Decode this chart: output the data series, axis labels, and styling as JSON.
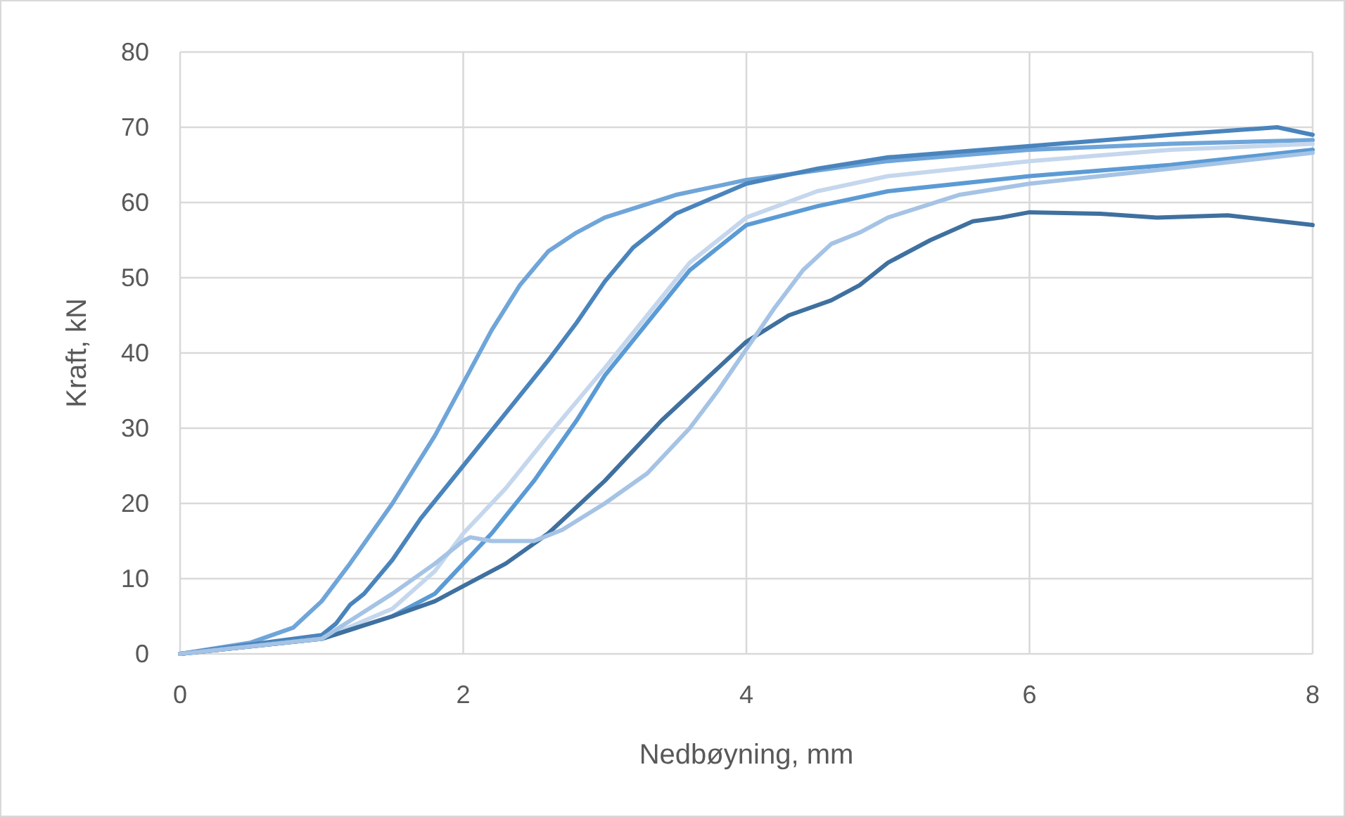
{
  "chart_data": {
    "type": "line",
    "xlabel": "Nedbøyning, mm",
    "ylabel": "Kraft, kN",
    "xlim": [
      0,
      8
    ],
    "xticks": [
      0,
      2,
      4,
      6,
      8
    ],
    "ylim": [
      0,
      80
    ],
    "yticks": [
      0,
      10,
      20,
      30,
      40,
      50,
      60,
      70,
      80
    ],
    "grid": true,
    "line_style": "solid",
    "series": [
      {
        "color": "#6fa5d9",
        "x": [
          0,
          0.5,
          0.8,
          1,
          1.2,
          1.5,
          1.8,
          2,
          2.2,
          2.4,
          2.6,
          2.8,
          3,
          3.5,
          4,
          5,
          6,
          7,
          8
        ],
        "values": [
          0,
          1.5,
          3.5,
          7,
          12,
          20,
          29,
          36,
          43,
          49,
          53.5,
          56,
          58,
          61,
          63,
          65.5,
          67,
          67.8,
          68.3
        ]
      },
      {
        "color": "#4a84bd",
        "x": [
          0,
          1,
          1.1,
          1.2,
          1.3,
          1.5,
          1.7,
          2,
          2.3,
          2.6,
          2.8,
          3,
          3.2,
          3.5,
          4,
          4.5,
          5,
          6,
          7,
          7.75,
          8
        ],
        "values": [
          0,
          2.5,
          4,
          6.5,
          8,
          12.5,
          18,
          25,
          32,
          39,
          44,
          49.5,
          54,
          58.5,
          62.5,
          64.5,
          66,
          67.5,
          69,
          70,
          69
        ]
      },
      {
        "color": "#c5d7ed",
        "x": [
          0,
          1,
          1.5,
          1.8,
          2,
          2.3,
          2.6,
          3,
          3.3,
          3.6,
          4,
          4.5,
          5,
          6,
          7,
          8
        ],
        "values": [
          0,
          2,
          6,
          11,
          16,
          22,
          29,
          38,
          45,
          52,
          58,
          61.5,
          63.5,
          65.5,
          67,
          67.8
        ]
      },
      {
        "color": "#5b9bd5",
        "x": [
          0,
          1,
          1.5,
          1.8,
          2,
          2.2,
          2.5,
          2.8,
          3,
          3.3,
          3.6,
          4,
          4.5,
          5,
          6,
          7,
          8
        ],
        "values": [
          0,
          2,
          5,
          8,
          12,
          16,
          23,
          31,
          37,
          44,
          51,
          57,
          59.5,
          61.5,
          63.5,
          65,
          67
        ]
      },
      {
        "color": "#3f709f",
        "x": [
          0,
          1,
          1.5,
          1.8,
          2,
          2.3,
          2.6,
          3,
          3.4,
          3.8,
          4,
          4.3,
          4.6,
          4.8,
          5,
          5.3,
          5.6,
          5.8,
          6,
          6.5,
          6.9,
          7.4,
          8
        ],
        "values": [
          0,
          2,
          5,
          7,
          9,
          12,
          16,
          23,
          31,
          38,
          41.5,
          45,
          47,
          49,
          52,
          55,
          57.5,
          58,
          58.7,
          58.5,
          58,
          58.3,
          57
        ]
      },
      {
        "color": "#a5c3e5",
        "x": [
          0,
          1,
          1.5,
          1.8,
          2,
          2.05,
          2.2,
          2.5,
          2.7,
          3,
          3.3,
          3.6,
          3.8,
          4,
          4.2,
          4.4,
          4.6,
          4.8,
          5,
          5.5,
          6,
          7,
          8
        ],
        "values": [
          0,
          2,
          8,
          12,
          15,
          15.5,
          15,
          15,
          16.5,
          20,
          24,
          30,
          35,
          40.5,
          46,
          51,
          54.5,
          56,
          58,
          61,
          62.5,
          64.5,
          66.6
        ]
      }
    ]
  }
}
